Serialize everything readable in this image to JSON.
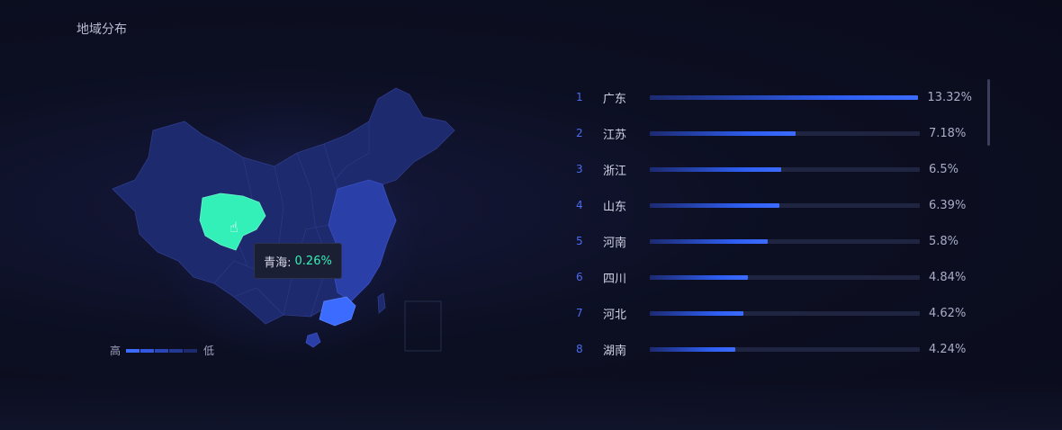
{
  "title": "地域分布",
  "tooltip": {
    "name": "青海:",
    "value": "0.26%"
  },
  "legend": {
    "high": "高",
    "low": "低"
  },
  "colors": {
    "highlight": "#33f0b8",
    "accent": "#3b6cff",
    "map_base": "#1d2a6e"
  },
  "ranking": [
    {
      "rank": "1",
      "name": "广东",
      "value": 13.32,
      "label": "13.32%"
    },
    {
      "rank": "2",
      "name": "江苏",
      "value": 7.18,
      "label": "7.18%"
    },
    {
      "rank": "3",
      "name": "浙江",
      "value": 6.5,
      "label": "6.5%"
    },
    {
      "rank": "4",
      "name": "山东",
      "value": 6.39,
      "label": "6.39%"
    },
    {
      "rank": "5",
      "name": "河南",
      "value": 5.8,
      "label": "5.8%"
    },
    {
      "rank": "6",
      "name": "四川",
      "value": 4.84,
      "label": "4.84%"
    },
    {
      "rank": "7",
      "name": "河北",
      "value": 4.62,
      "label": "4.62%"
    },
    {
      "rank": "8",
      "name": "湖南",
      "value": 4.24,
      "label": "4.24%"
    }
  ]
}
